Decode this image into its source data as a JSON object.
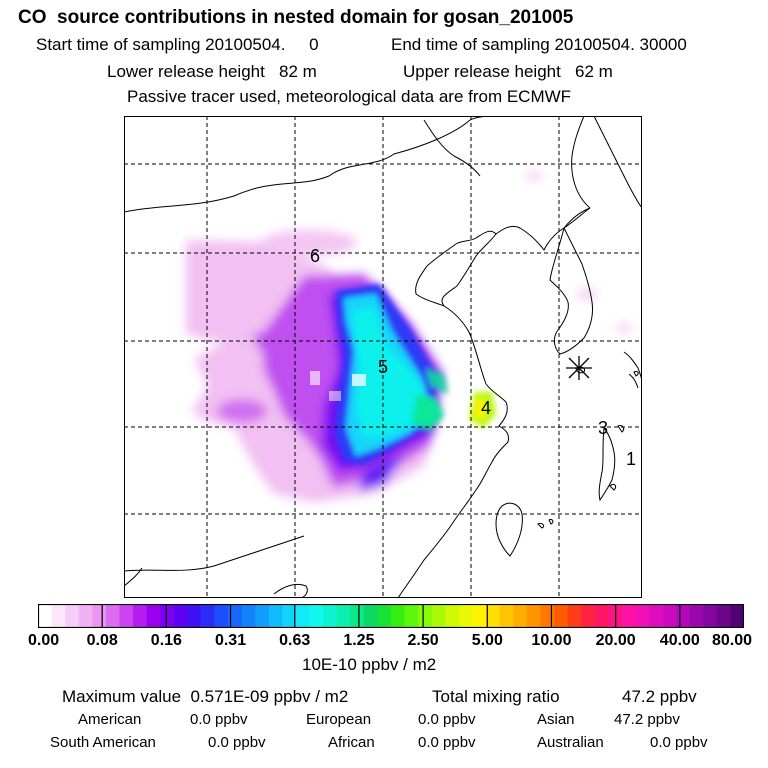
{
  "header": {
    "title": "CO  source contributions in nested domain for gosan_201005",
    "start_label": "Start time of sampling 20100504.     0",
    "end_label": "End time of sampling 20100504. 30000",
    "lower_label": "Lower release height   82 m",
    "upper_label": "Upper release height   62 m",
    "note": "Passive tracer used, meteorological data are from ECMWF"
  },
  "map": {
    "receptor_icon": "asterisk-marker-icon",
    "labels": [
      {
        "id": "1",
        "text": "1"
      },
      {
        "id": "3",
        "text": "3"
      },
      {
        "id": "4",
        "text": "4"
      },
      {
        "id": "5",
        "text": "5"
      },
      {
        "id": "6",
        "text": "6"
      }
    ]
  },
  "colorbar": {
    "ticks": [
      "0.00",
      "0.08",
      "0.16",
      "0.31",
      "0.63",
      "1.25",
      "2.50",
      "5.00",
      "10.00",
      "20.00",
      "40.00",
      "80.00"
    ],
    "colors": [
      "#ffffff",
      "#fbe6fb",
      "#f6cdf7",
      "#f0b2f4",
      "#ea95f2",
      "#dd6cf0",
      "#cc44ef",
      "#b51df0",
      "#9a00ee",
      "#7e00f2",
      "#5f00f5",
      "#3f12f5",
      "#2a2ef8",
      "#1e4dfb",
      "#1767fb",
      "#1283fb",
      "#0f9ffb",
      "#10bbfb",
      "#12d4fb",
      "#12eaf8",
      "#10f7ee",
      "#0df3cf",
      "#0ceead",
      "#0ce88a",
      "#0bd964",
      "#18e236",
      "#36ef12",
      "#5ef60d",
      "#86fb09",
      "#aaf907",
      "#cdf806",
      "#eaf605",
      "#fff200",
      "#ffde00",
      "#ffc600",
      "#ffae00",
      "#ff9300",
      "#ff7800",
      "#ff5c00",
      "#ff3c1a",
      "#ff2242",
      "#ff1566",
      "#ff1486",
      "#ff12a4",
      "#f010b5",
      "#df0dbf",
      "#c90abf",
      "#b109b8",
      "#9a07ad",
      "#84069f",
      "#6b0589",
      "#520373"
    ],
    "unit": "10E-10 ppbv / m2"
  },
  "stats": {
    "max_label": "Maximum value  0.571E-09 ppbv / m2",
    "total_label": "Total mixing ratio",
    "total_value": "47.2 ppbv",
    "american_label": "American",
    "american_value": "0.0 ppbv",
    "european_label": "European",
    "european_value": "0.0 ppbv",
    "asian_label": "Asian",
    "asian_value": "47.2 ppbv",
    "south_american_label": "South American",
    "south_american_value": "0.0 ppbv",
    "african_label": "African",
    "african_value": "0.0 ppbv",
    "australian_label": "Australian",
    "australian_value": "0.0 ppbv"
  }
}
